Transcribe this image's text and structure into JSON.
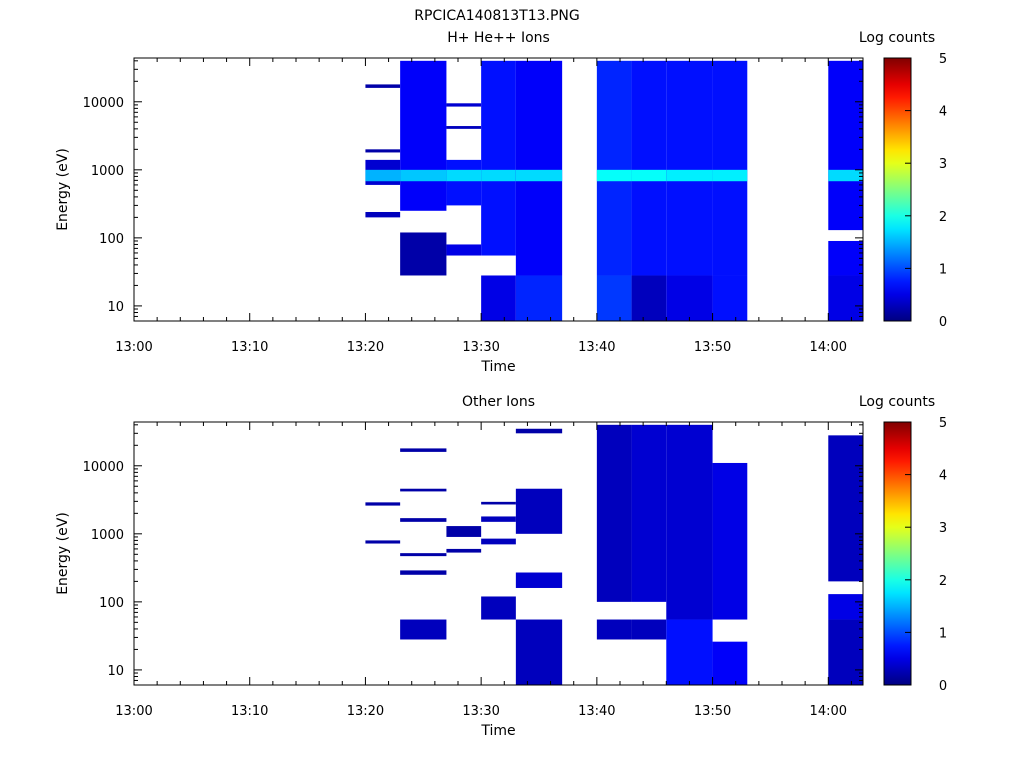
{
  "window_title": "RPCICA140813T13.PNG",
  "chart_data": [
    {
      "type": "heatmap",
      "title": "H+ He++ Ions",
      "xlabel": "Time",
      "ylabel": "Energy (eV)",
      "y_scale": "log",
      "x_ticks": [
        "13:00",
        "13:10",
        "13:20",
        "13:30",
        "13:40",
        "13:50",
        "14:00"
      ],
      "x_range": [
        "13:00",
        "14:03"
      ],
      "y_ticks": [
        "10",
        "100",
        "1000",
        "10000"
      ],
      "y_range": [
        6,
        44000
      ],
      "colorbar": {
        "label": "Log counts",
        "range": [
          0,
          5
        ],
        "ticks": [
          "0",
          "1",
          "2",
          "3",
          "4",
          "5"
        ]
      },
      "grid": false,
      "cells": [
        {
          "t": [
            "13:20",
            "13:23"
          ],
          "e": [
            600,
            1400
          ],
          "v": 0.4
        },
        {
          "t": [
            "13:20",
            "13:23"
          ],
          "e": [
            680,
            1000
          ],
          "v": 1.5
        },
        {
          "t": [
            "13:20",
            "13:23"
          ],
          "e": [
            16000,
            18000
          ],
          "v": 0.2
        },
        {
          "t": [
            "13:20",
            "13:23"
          ],
          "e": [
            1800,
            2000
          ],
          "v": 0.2
        },
        {
          "t": [
            "13:20",
            "13:23"
          ],
          "e": [
            200,
            240
          ],
          "v": 0.3
        },
        {
          "t": [
            "13:23",
            "13:27"
          ],
          "e": [
            28,
            120
          ],
          "v": 0.2
        },
        {
          "t": [
            "13:23",
            "13:27"
          ],
          "e": [
            250,
            40000
          ],
          "v": 0.6
        },
        {
          "t": [
            "13:23",
            "13:27"
          ],
          "e": [
            680,
            1000
          ],
          "v": 1.6
        },
        {
          "t": [
            "13:27",
            "13:30"
          ],
          "e": [
            55,
            80
          ],
          "v": 0.5
        },
        {
          "t": [
            "13:27",
            "13:30"
          ],
          "e": [
            300,
            1400
          ],
          "v": 0.7
        },
        {
          "t": [
            "13:27",
            "13:30"
          ],
          "e": [
            680,
            1000
          ],
          "v": 1.7
        },
        {
          "t": [
            "13:27",
            "13:30"
          ],
          "e": [
            8500,
            9500
          ],
          "v": 0.4
        },
        {
          "t": [
            "13:27",
            "13:30"
          ],
          "e": [
            4000,
            4400
          ],
          "v": 0.3
        },
        {
          "t": [
            "13:30",
            "13:33"
          ],
          "e": [
            6,
            28
          ],
          "v": 0.5
        },
        {
          "t": [
            "13:30",
            "13:33"
          ],
          "e": [
            55,
            40000
          ],
          "v": 0.7
        },
        {
          "t": [
            "13:30",
            "13:33"
          ],
          "e": [
            680,
            1000
          ],
          "v": 1.7
        },
        {
          "t": [
            "13:33",
            "13:37"
          ],
          "e": [
            6,
            28
          ],
          "v": 0.8
        },
        {
          "t": [
            "13:33",
            "13:37"
          ],
          "e": [
            28,
            40000
          ],
          "v": 0.6
        },
        {
          "t": [
            "13:33",
            "13:37"
          ],
          "e": [
            680,
            1000
          ],
          "v": 1.7
        },
        {
          "t": [
            "13:40",
            "13:43"
          ],
          "e": [
            6,
            28
          ],
          "v": 0.9
        },
        {
          "t": [
            "13:40",
            "13:43"
          ],
          "e": [
            28,
            40000
          ],
          "v": 0.8
        },
        {
          "t": [
            "13:40",
            "13:43"
          ],
          "e": [
            680,
            1000
          ],
          "v": 1.9
        },
        {
          "t": [
            "13:43",
            "13:46"
          ],
          "e": [
            6,
            28
          ],
          "v": 0.3
        },
        {
          "t": [
            "13:43",
            "13:46"
          ],
          "e": [
            28,
            40000
          ],
          "v": 0.7
        },
        {
          "t": [
            "13:43",
            "13:46"
          ],
          "e": [
            680,
            1000
          ],
          "v": 1.9
        },
        {
          "t": [
            "13:46",
            "13:50"
          ],
          "e": [
            6,
            28
          ],
          "v": 0.5
        },
        {
          "t": [
            "13:46",
            "13:50"
          ],
          "e": [
            28,
            40000
          ],
          "v": 0.7
        },
        {
          "t": [
            "13:46",
            "13:50"
          ],
          "e": [
            680,
            1000
          ],
          "v": 1.8
        },
        {
          "t": [
            "13:50",
            "13:53"
          ],
          "e": [
            6,
            28
          ],
          "v": 0.7
        },
        {
          "t": [
            "13:50",
            "13:53"
          ],
          "e": [
            28,
            40000
          ],
          "v": 0.7
        },
        {
          "t": [
            "13:50",
            "13:53"
          ],
          "e": [
            680,
            1000
          ],
          "v": 1.8
        },
        {
          "t": [
            "14:00",
            "14:03"
          ],
          "e": [
            6,
            28
          ],
          "v": 0.5
        },
        {
          "t": [
            "14:00",
            "14:03"
          ],
          "e": [
            28,
            90
          ],
          "v": 0.6
        },
        {
          "t": [
            "14:00",
            "14:03"
          ],
          "e": [
            130,
            40000
          ],
          "v": 0.6
        },
        {
          "t": [
            "14:00",
            "14:03"
          ],
          "e": [
            680,
            1000
          ],
          "v": 1.7
        }
      ]
    },
    {
      "type": "heatmap",
      "title": "Other Ions",
      "xlabel": "Time",
      "ylabel": "Energy (eV)",
      "y_scale": "log",
      "x_ticks": [
        "13:00",
        "13:10",
        "13:20",
        "13:30",
        "13:40",
        "13:50",
        "14:00"
      ],
      "x_range": [
        "13:00",
        "14:03"
      ],
      "y_ticks": [
        "10",
        "100",
        "1000",
        "10000"
      ],
      "y_range": [
        6,
        44000
      ],
      "colorbar": {
        "label": "Log counts",
        "range": [
          0,
          5
        ],
        "ticks": [
          "0",
          "1",
          "2",
          "3",
          "4",
          "5"
        ]
      },
      "grid": false,
      "cells": [
        {
          "t": [
            "13:20",
            "13:23"
          ],
          "e": [
            2600,
            2900
          ],
          "v": 0.2
        },
        {
          "t": [
            "13:20",
            "13:23"
          ],
          "e": [
            720,
            800
          ],
          "v": 0.2
        },
        {
          "t": [
            "13:23",
            "13:27"
          ],
          "e": [
            28,
            55
          ],
          "v": 0.3
        },
        {
          "t": [
            "13:23",
            "13:27"
          ],
          "e": [
            250,
            290
          ],
          "v": 0.2
        },
        {
          "t": [
            "13:23",
            "13:27"
          ],
          "e": [
            470,
            520
          ],
          "v": 0.2
        },
        {
          "t": [
            "13:23",
            "13:27"
          ],
          "e": [
            1500,
            1700
          ],
          "v": 0.2
        },
        {
          "t": [
            "13:23",
            "13:27"
          ],
          "e": [
            4200,
            4600
          ],
          "v": 0.2
        },
        {
          "t": [
            "13:23",
            "13:27"
          ],
          "e": [
            16000,
            18000
          ],
          "v": 0.2
        },
        {
          "t": [
            "13:27",
            "13:30"
          ],
          "e": [
            530,
            600
          ],
          "v": 0.2
        },
        {
          "t": [
            "13:27",
            "13:30"
          ],
          "e": [
            900,
            1300
          ],
          "v": 0.2
        },
        {
          "t": [
            "13:30",
            "13:33"
          ],
          "e": [
            55,
            120
          ],
          "v": 0.3
        },
        {
          "t": [
            "13:30",
            "13:33"
          ],
          "e": [
            700,
            850
          ],
          "v": 0.3
        },
        {
          "t": [
            "13:30",
            "13:33"
          ],
          "e": [
            1500,
            1800
          ],
          "v": 0.3
        },
        {
          "t": [
            "13:30",
            "13:33"
          ],
          "e": [
            2700,
            2950
          ],
          "v": 0.2
        },
        {
          "t": [
            "13:33",
            "13:37"
          ],
          "e": [
            6,
            55
          ],
          "v": 0.3
        },
        {
          "t": [
            "13:33",
            "13:37"
          ],
          "e": [
            160,
            270
          ],
          "v": 0.4
        },
        {
          "t": [
            "13:33",
            "13:37"
          ],
          "e": [
            1000,
            4600
          ],
          "v": 0.3
        },
        {
          "t": [
            "13:33",
            "13:37"
          ],
          "e": [
            30000,
            35000
          ],
          "v": 0.2
        },
        {
          "t": [
            "13:40",
            "13:43"
          ],
          "e": [
            28,
            55
          ],
          "v": 0.3
        },
        {
          "t": [
            "13:40",
            "13:43"
          ],
          "e": [
            100,
            40000
          ],
          "v": 0.3
        },
        {
          "t": [
            "13:43",
            "13:46"
          ],
          "e": [
            28,
            55
          ],
          "v": 0.3
        },
        {
          "t": [
            "13:43",
            "13:46"
          ],
          "e": [
            100,
            40000
          ],
          "v": 0.4
        },
        {
          "t": [
            "13:46",
            "13:50"
          ],
          "e": [
            6,
            55
          ],
          "v": 0.7
        },
        {
          "t": [
            "13:46",
            "13:50"
          ],
          "e": [
            55,
            40000
          ],
          "v": 0.4
        },
        {
          "t": [
            "13:50",
            "13:53"
          ],
          "e": [
            6,
            26
          ],
          "v": 0.6
        },
        {
          "t": [
            "13:50",
            "13:53"
          ],
          "e": [
            55,
            11000
          ],
          "v": 0.5
        },
        {
          "t": [
            "14:00",
            "14:03"
          ],
          "e": [
            6,
            55
          ],
          "v": 0.3
        },
        {
          "t": [
            "14:00",
            "14:03"
          ],
          "e": [
            55,
            130
          ],
          "v": 0.5
        },
        {
          "t": [
            "14:00",
            "14:03"
          ],
          "e": [
            200,
            28000
          ],
          "v": 0.3
        }
      ]
    }
  ]
}
